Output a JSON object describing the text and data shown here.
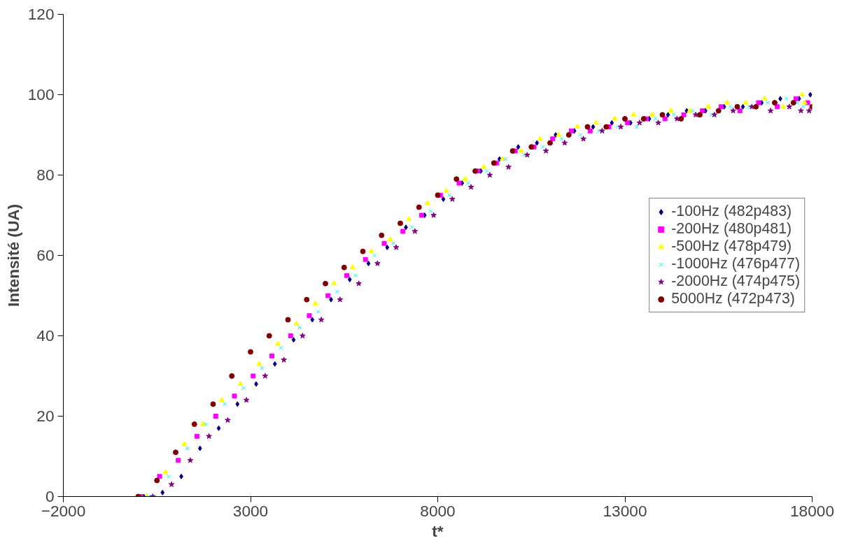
{
  "chart_data": {
    "type": "scatter",
    "xlabel": "t*",
    "ylabel": "Intensité (UA)",
    "x": [
      0,
      500,
      1000,
      1500,
      2000,
      2500,
      3000,
      3500,
      4000,
      4500,
      5000,
      5500,
      6000,
      6500,
      7000,
      7500,
      8000,
      8500,
      9000,
      9500,
      10000,
      10500,
      11000,
      11500,
      12000,
      12500,
      13000,
      13500,
      14000,
      14500,
      15000,
      15500,
      16000,
      16500,
      17000,
      17500,
      18000
    ],
    "xlim": [
      -2000,
      18000
    ],
    "xticks": [
      -2000,
      3000,
      8000,
      13000,
      18000
    ],
    "ylim": [
      0,
      120
    ],
    "yticks": [
      0,
      20,
      40,
      60,
      80,
      100,
      120
    ],
    "grid": false,
    "legend": "right",
    "series": [
      {
        "name": "-100Hz (482p483)",
        "color": "#000080",
        "marker": "diamond",
        "x": [
          150,
          650,
          1150,
          1650,
          2150,
          2650,
          3150,
          3650,
          4150,
          4650,
          5150,
          5650,
          6150,
          6650,
          7150,
          7650,
          8150,
          8650,
          9150,
          9650,
          10150,
          10650,
          11150,
          11650,
          12150,
          12650,
          13150,
          13650,
          14150,
          14650,
          15150,
          15650,
          16150,
          16650,
          17150,
          17650,
          17950
        ],
        "values": [
          0,
          1,
          5,
          12,
          17,
          23,
          28,
          33,
          39,
          44,
          49,
          54,
          58,
          62,
          67,
          70,
          74,
          78,
          81,
          84,
          87,
          88,
          90,
          91,
          92,
          93,
          93,
          94,
          95,
          96,
          96,
          97,
          97,
          98,
          99,
          99,
          100
        ]
      },
      {
        "name": "-200Hz (480p481)",
        "color": "#ff00ff",
        "marker": "square",
        "x": [
          70,
          570,
          1070,
          1570,
          2070,
          2570,
          3070,
          3570,
          4070,
          4570,
          5070,
          5570,
          6070,
          6570,
          7070,
          7570,
          8070,
          8570,
          9070,
          9570,
          10070,
          10570,
          11070,
          11570,
          12070,
          12570,
          13070,
          13570,
          14070,
          14570,
          15070,
          15570,
          16070,
          16570,
          17070,
          17570,
          17880
        ],
        "values": [
          0,
          5,
          9,
          15,
          20,
          25,
          30,
          35,
          40,
          45,
          50,
          55,
          59,
          63,
          66,
          70,
          75,
          78,
          81,
          83,
          86,
          87,
          89,
          91,
          91,
          92,
          93,
          94,
          94,
          95,
          96,
          97,
          96,
          98,
          97,
          99,
          98
        ]
      },
      {
        "name": "-500Hz (478p479)",
        "color": "#ffff00",
        "marker": "triangle",
        "x": [
          230,
          730,
          1230,
          1730,
          2230,
          2730,
          3230,
          3730,
          4230,
          4730,
          5230,
          5730,
          6230,
          6730,
          7230,
          7730,
          8230,
          8730,
          9230,
          9730,
          10230,
          10730,
          11230,
          11730,
          12230,
          12730,
          13230,
          13730,
          14230,
          14730,
          15230,
          15730,
          16230,
          16730,
          17230,
          17730,
          17800
        ],
        "values": [
          0,
          6,
          13,
          18,
          24,
          28,
          33,
          38,
          43,
          48,
          53,
          57,
          61,
          64,
          69,
          73,
          76,
          79,
          82,
          84,
          86,
          89,
          90,
          92,
          93,
          94,
          95,
          95,
          96,
          96,
          97,
          98,
          98,
          99,
          97,
          100,
          98
        ]
      },
      {
        "name": "-1000Hz (476p477)",
        "color": "#00ffff",
        "marker": "cross",
        "x": [
          310,
          810,
          1310,
          1810,
          2310,
          2810,
          3310,
          3810,
          4310,
          4810,
          5310,
          5810,
          6310,
          6810,
          7310,
          7810,
          8310,
          8810,
          9310,
          9810,
          10310,
          10810,
          11310,
          11810,
          12310,
          12810,
          13310,
          13810,
          14310,
          14810,
          15310,
          15810,
          16310,
          16810,
          17310,
          17600,
          17760
        ],
        "values": [
          0,
          5,
          12,
          18,
          23,
          27,
          32,
          37,
          42,
          46,
          51,
          55,
          60,
          63,
          67,
          71,
          75,
          78,
          81,
          84,
          85,
          87,
          89,
          90,
          91,
          92,
          92,
          94,
          95,
          96,
          95,
          97,
          97,
          98,
          99,
          98,
          97
        ]
      },
      {
        "name": "-2000Hz (474p475)",
        "color": "#800080",
        "marker": "star",
        "x": [
          390,
          890,
          1390,
          1890,
          2390,
          2890,
          3390,
          3890,
          4390,
          4890,
          5390,
          5890,
          6390,
          6890,
          7390,
          7890,
          8390,
          8890,
          9390,
          9890,
          10390,
          10890,
          11390,
          11890,
          12390,
          12890,
          13390,
          13890,
          14390,
          14890,
          15390,
          15890,
          16390,
          16890,
          17390,
          17700,
          17920
        ],
        "values": [
          0,
          3,
          9,
          15,
          19,
          24,
          30,
          34,
          40,
          44,
          49,
          53,
          58,
          62,
          66,
          70,
          74,
          77,
          80,
          82,
          85,
          86,
          88,
          89,
          91,
          92,
          93,
          93,
          94,
          95,
          95,
          96,
          97,
          96,
          97,
          96,
          96
        ]
      },
      {
        "name": "5000Hz (472p473)",
        "color": "#800000",
        "marker": "circle",
        "values": [
          0,
          4,
          11,
          18,
          23,
          30,
          36,
          40,
          44,
          49,
          53,
          57,
          61,
          65,
          68,
          72,
          75,
          79,
          81,
          83,
          86,
          87,
          88,
          90,
          92,
          92,
          94,
          94,
          95,
          94,
          95,
          96,
          97,
          97,
          98,
          98,
          97
        ]
      }
    ]
  }
}
